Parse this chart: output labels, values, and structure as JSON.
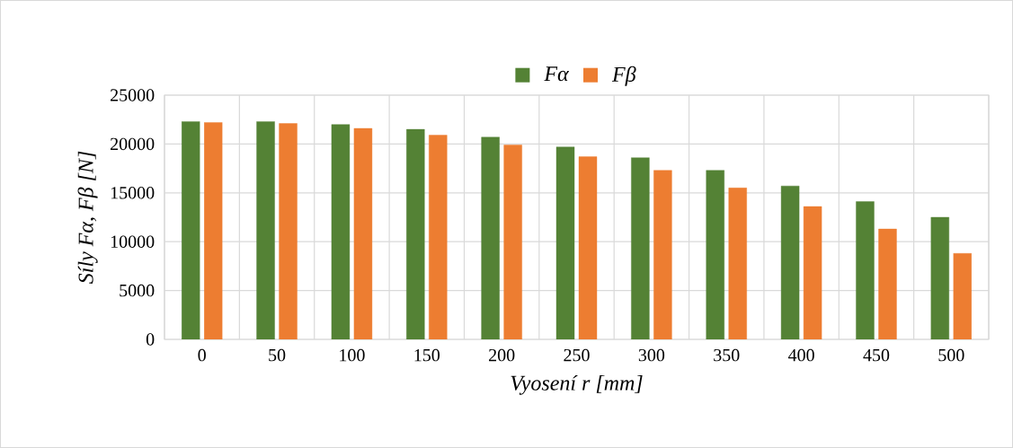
{
  "chart_data": {
    "type": "bar",
    "categories": [
      "0",
      "50",
      "100",
      "150",
      "200",
      "250",
      "300",
      "350",
      "400",
      "450",
      "500"
    ],
    "series": [
      {
        "name": "*Fα*",
        "color": "#548235",
        "values": [
          22300,
          22300,
          22000,
          21500,
          20700,
          19700,
          18600,
          17300,
          15700,
          14100,
          12500
        ]
      },
      {
        "name": "*Fβ*",
        "color": "#ed7d31",
        "values": [
          22200,
          22100,
          21600,
          20900,
          19900,
          18700,
          17300,
          15500,
          13600,
          11300,
          8800
        ]
      }
    ],
    "xlabel": "Vyosení r [mm]",
    "ylabel": "Síly Fα, Fβ  [N]",
    "ylim": [
      0,
      25000
    ],
    "yticks": [
      0,
      5000,
      10000,
      15000,
      20000,
      25000
    ],
    "grid": true,
    "legend": "top"
  }
}
